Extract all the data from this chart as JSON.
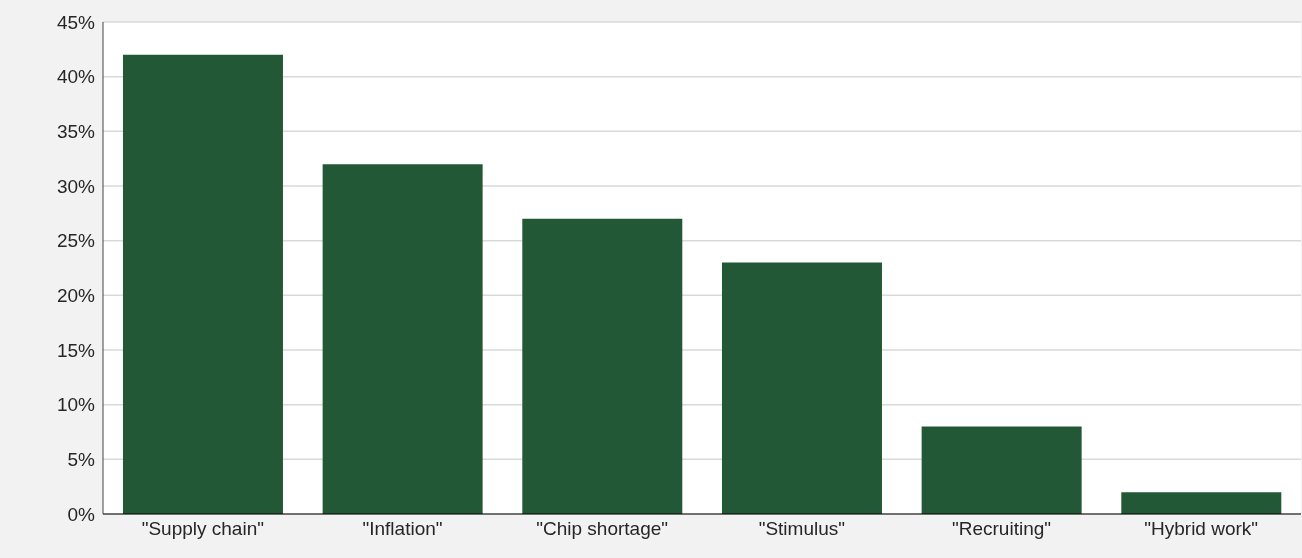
{
  "chart_data": {
    "type": "bar",
    "categories": [
      "\"Supply chain\"",
      "\"Inflation\"",
      "\"Chip shortage\"",
      "\"Stimulus\"",
      "\"Recruiting\"",
      "\"Hybrid work\""
    ],
    "values": [
      42,
      32,
      27,
      23,
      8,
      2
    ],
    "color": "#225835",
    "ylim": [
      0,
      45
    ],
    "yticks": [
      {
        "value": 0,
        "label": "0%"
      },
      {
        "value": 5,
        "label": "5%"
      },
      {
        "value": 10,
        "label": "10%"
      },
      {
        "value": 15,
        "label": "15%"
      },
      {
        "value": 20,
        "label": "20%"
      },
      {
        "value": 25,
        "label": "25%"
      },
      {
        "value": 30,
        "label": "30%"
      },
      {
        "value": 35,
        "label": "35%"
      },
      {
        "value": 40,
        "label": "40%"
      },
      {
        "value": 45,
        "label": "45%"
      }
    ],
    "grid": "y"
  }
}
